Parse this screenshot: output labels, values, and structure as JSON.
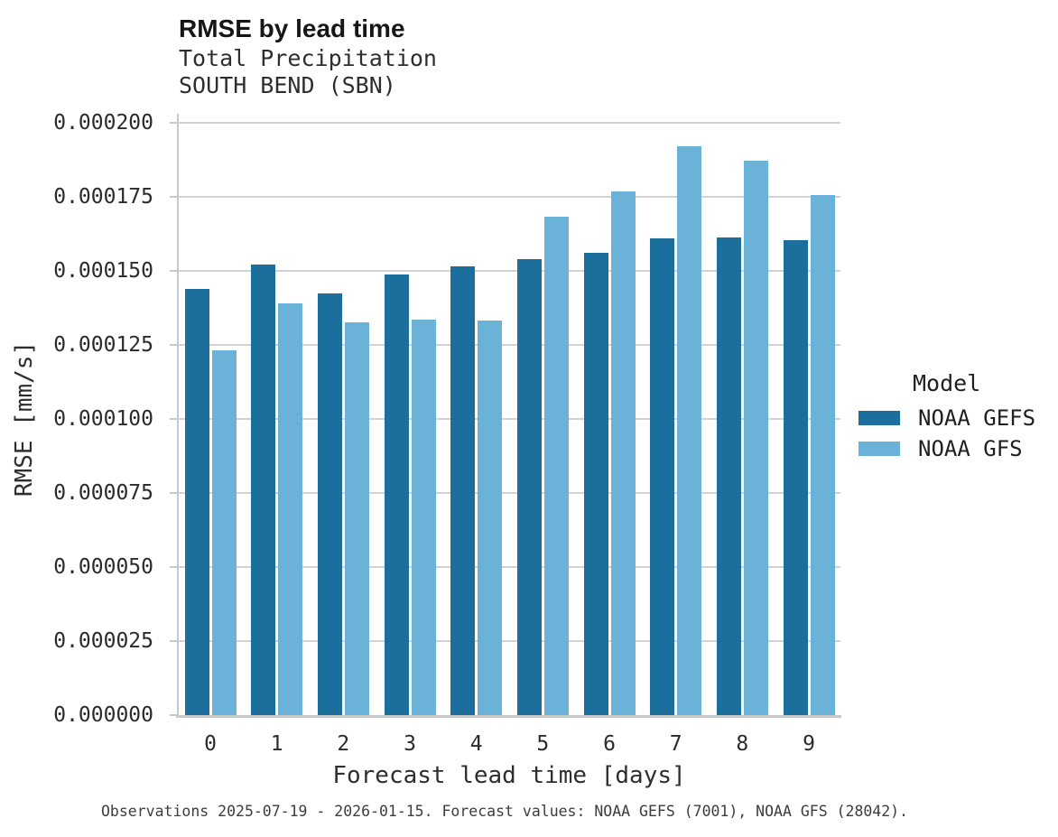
{
  "chart_data": {
    "type": "bar",
    "title": "RMSE by lead time",
    "subtitle1": "Total Precipitation",
    "subtitle2": "SOUTH BEND (SBN)",
    "xlabel": "Forecast lead time [days]",
    "ylabel": "RMSE [mm/s]",
    "categories": [
      "0",
      "1",
      "2",
      "3",
      "4",
      "5",
      "6",
      "7",
      "8",
      "9"
    ],
    "series": [
      {
        "name": "NOAA GEFS",
        "color": "#1c6e9d",
        "values": [
          0.000144,
          0.000152,
          0.0001425,
          0.0001487,
          0.0001514,
          0.0001541,
          0.0001561,
          0.000161,
          0.0001613,
          0.0001604
        ]
      },
      {
        "name": "NOAA GFS",
        "color": "#6bb2d9",
        "values": [
          0.0001233,
          0.0001389,
          0.0001326,
          0.0001334,
          0.0001331,
          0.0001684,
          0.0001767,
          0.0001921,
          0.0001871,
          0.0001757
        ]
      }
    ],
    "ylim": [
      0,
      0.0002
    ],
    "ytick_step": 2.5e-05,
    "ytick_decimals": 6,
    "grid": true,
    "legend_title": "Model",
    "legend_position": "right",
    "caption": "Observations 2025-07-19 - 2026-01-15. Forecast values: NOAA GEFS (7001), NOAA GFS (28042).",
    "colors": {
      "grid": "#d2d2d2",
      "spine": "#c9c9c9",
      "axis_text": "#2b2b2b",
      "title_text": "#161616",
      "caption_text": "#3d3d3d",
      "background": "#ffffff"
    }
  }
}
